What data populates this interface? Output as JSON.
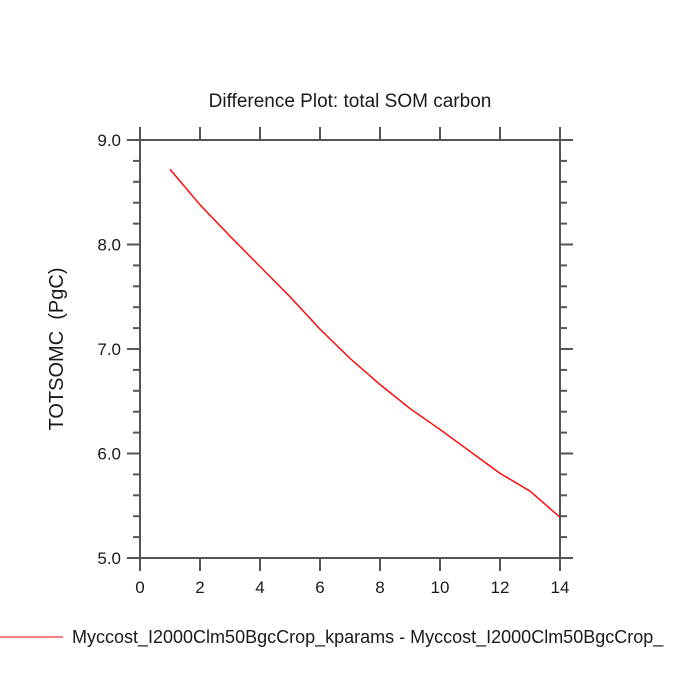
{
  "chart_data": {
    "type": "line",
    "title": "Difference Plot: total SOM carbon",
    "xlabel": "",
    "ylabel": "TOTSOMC  (PgC)",
    "x": [
      1,
      2,
      3,
      4,
      5,
      6,
      7,
      8,
      9,
      10,
      11,
      12,
      13,
      14
    ],
    "series": [
      {
        "name": "Myccost_I2000Clm50BgcCrop_kparams - Myccost_I2000Clm50BgcCrop_",
        "values": [
          8.72,
          8.38,
          8.08,
          7.79,
          7.5,
          7.19,
          6.91,
          6.66,
          6.43,
          6.23,
          6.02,
          5.81,
          5.64,
          5.39
        ],
        "color": "#ff0000"
      }
    ],
    "xlim": [
      0,
      14
    ],
    "ylim": [
      5.0,
      9.0
    ],
    "xticks": {
      "major": [
        0,
        2,
        4,
        6,
        8,
        10,
        12,
        14
      ],
      "labels": [
        "0",
        "2",
        "4",
        "6",
        "8",
        "10",
        "12",
        "14"
      ]
    },
    "yticks": {
      "major": [
        5,
        6,
        7,
        8,
        9
      ],
      "labels": [
        "5.0",
        "6.0",
        "7.0",
        "8.0",
        "9.0"
      ],
      "minor_step": 0.2
    },
    "grid": false,
    "axis_color": "#555555",
    "text_color": "#1a1a1a",
    "legend": {
      "position": "bottom-left",
      "entries": [
        {
          "label": "Myccost_I2000Clm50BgcCrop_kparams - Myccost_I2000Clm50BgcCrop_",
          "line_color": "#f58080"
        }
      ]
    }
  }
}
